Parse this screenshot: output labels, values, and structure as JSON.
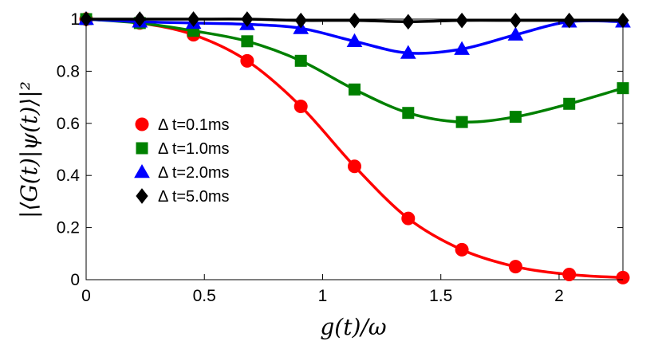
{
  "chart_data": {
    "type": "line",
    "title": "",
    "xlabel": "g(t)/ω",
    "ylabel": "|⟨G(t)|ψ(t)⟩|²",
    "xlim": [
      0,
      2.27
    ],
    "ylim": [
      0,
      1.0
    ],
    "xticks": [
      0,
      0.5,
      1,
      1.5,
      2
    ],
    "xtick_labels": [
      "0",
      "0.5",
      "1",
      "1.5",
      "2"
    ],
    "yticks": [
      0,
      0.2,
      0.4,
      0.6,
      0.8,
      1
    ],
    "ytick_labels": [
      "0",
      "0.2",
      "0.4",
      "0.6",
      "0.8",
      "1"
    ],
    "grid": false,
    "legend_position": "left-center",
    "series": [
      {
        "name": "Δ t=0.1ms",
        "color": "#ff0000",
        "marker": "circle",
        "x": [
          0,
          0.227,
          0.454,
          0.681,
          0.908,
          1.135,
          1.362,
          1.589,
          1.816,
          2.043,
          2.27
        ],
        "values": [
          1.0,
          0.985,
          0.94,
          0.84,
          0.665,
          0.435,
          0.235,
          0.115,
          0.05,
          0.02,
          0.008
        ]
      },
      {
        "name": "Δ t=1.0ms",
        "color": "#008000",
        "marker": "square",
        "x": [
          0,
          0.227,
          0.454,
          0.681,
          0.908,
          1.135,
          1.362,
          1.589,
          1.816,
          2.043,
          2.27
        ],
        "values": [
          1.0,
          0.985,
          0.955,
          0.915,
          0.84,
          0.73,
          0.64,
          0.605,
          0.625,
          0.675,
          0.735
        ]
      },
      {
        "name": "Δ t=2.0ms",
        "color": "#0000ff",
        "marker": "triangle",
        "x": [
          0,
          0.227,
          0.454,
          0.681,
          0.908,
          1.135,
          1.362,
          1.589,
          1.816,
          2.043,
          2.27
        ],
        "values": [
          1.0,
          0.99,
          0.985,
          0.98,
          0.965,
          0.915,
          0.87,
          0.885,
          0.94,
          0.99,
          0.99
        ]
      },
      {
        "name": "Δ t=5.0ms",
        "color": "#000000",
        "marker": "diamond",
        "x": [
          0,
          0.227,
          0.454,
          0.681,
          0.908,
          1.135,
          1.362,
          1.589,
          1.816,
          2.043,
          2.27
        ],
        "values": [
          1.0,
          1.0,
          1.0,
          1.0,
          0.995,
          0.995,
          0.99,
          0.995,
          0.995,
          0.995,
          0.995
        ]
      }
    ]
  }
}
